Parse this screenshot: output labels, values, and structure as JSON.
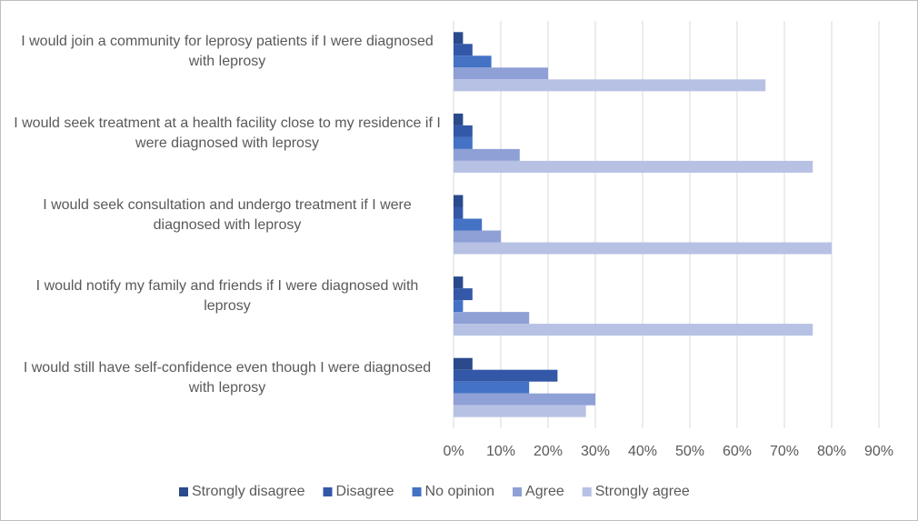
{
  "chart_data": {
    "type": "hbar",
    "categories": [
      "I would join a community for leprosy patients if I were diagnosed with leprosy",
      "I would seek treatment at a health facility close to my residence if I were diagnosed with leprosy",
      "I would seek consultation and undergo treatment if I were diagnosed with leprosy",
      "I would notify my family and friends if I were diagnosed with leprosy",
      "I would still have self-confidence even though I were diagnosed with leprosy"
    ],
    "series": [
      {
        "name": "Strongly disagree",
        "color": "#2a4a8c",
        "values": [
          2,
          2,
          2,
          2,
          4
        ]
      },
      {
        "name": "Disagree",
        "color": "#3358a8",
        "values": [
          4,
          4,
          2,
          4,
          22
        ]
      },
      {
        "name": "No opinion",
        "color": "#4472c4",
        "values": [
          8,
          4,
          6,
          2,
          16
        ]
      },
      {
        "name": "Agree",
        "color": "#8ea0d6",
        "values": [
          20,
          14,
          10,
          16,
          30
        ]
      },
      {
        "name": "Strongly agree",
        "color": "#b7c1e4",
        "values": [
          66,
          76,
          80,
          76,
          28
        ]
      }
    ],
    "xlim": [
      0,
      90
    ],
    "xticks": [
      {
        "value": 0,
        "label": "0%"
      },
      {
        "value": 10,
        "label": "10%"
      },
      {
        "value": 20,
        "label": "20%"
      },
      {
        "value": 30,
        "label": "30%"
      },
      {
        "value": 40,
        "label": "40%"
      },
      {
        "value": 50,
        "label": "50%"
      },
      {
        "value": 60,
        "label": "60%"
      },
      {
        "value": 70,
        "label": "70%"
      },
      {
        "value": 80,
        "label": "80%"
      },
      {
        "value": 90,
        "label": "90%"
      }
    ],
    "grid": true,
    "legend": "bottom"
  }
}
